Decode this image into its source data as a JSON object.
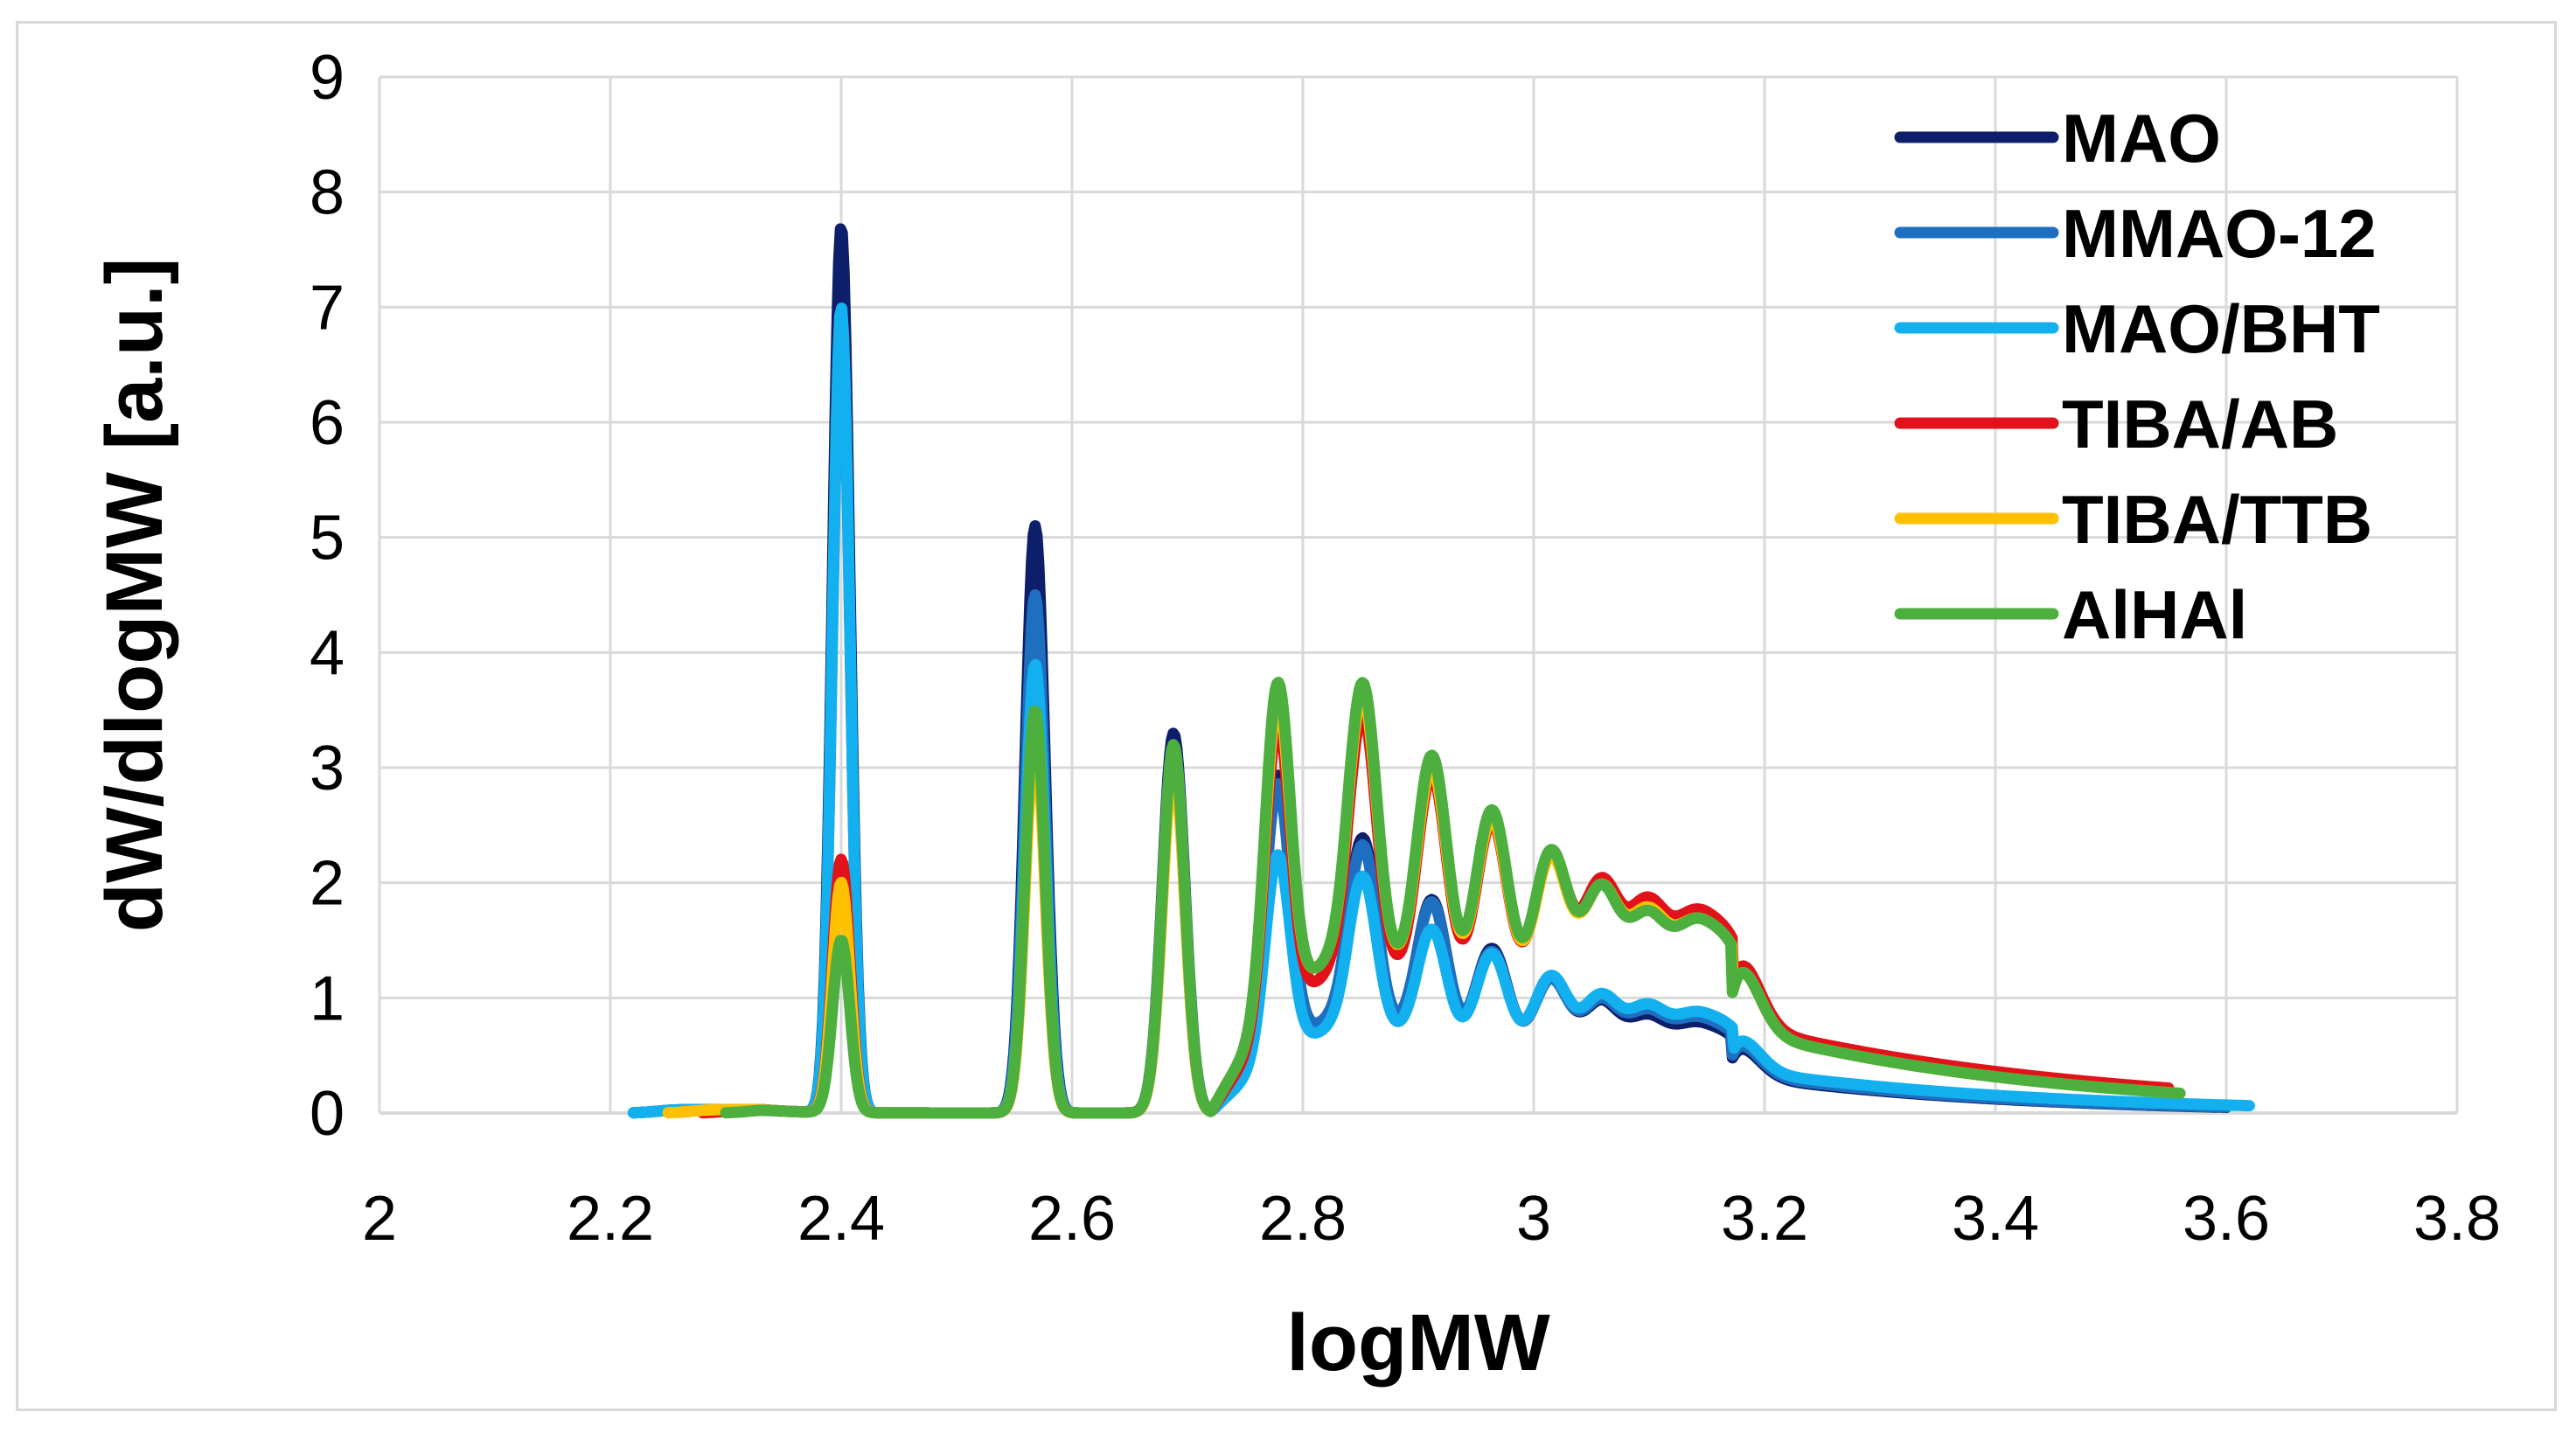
{
  "chart_data": {
    "type": "line",
    "xlabel": "logMW",
    "ylabel": "dW/dlogMW [a.u.]",
    "xlim": [
      2,
      3.8
    ],
    "ylim": [
      0,
      9
    ],
    "x_ticks": [
      "2",
      "2.2",
      "2.4",
      "2.6",
      "2.8",
      "3",
      "3.2",
      "3.4",
      "3.6",
      "3.8"
    ],
    "y_ticks": [
      "0",
      "1",
      "2",
      "3",
      "4",
      "5",
      "6",
      "7",
      "8",
      "9"
    ],
    "grid": true,
    "legend_position": "top-right",
    "peak_positions": [
      2.4,
      2.568,
      2.688,
      2.778,
      2.852,
      2.912,
      2.964,
      3.015,
      3.058,
      3.098,
      3.137,
      3.172
    ],
    "series": [
      {
        "name": "MAO",
        "color": "#0d1f6b",
        "x_range": [
          2.22,
          3.6
        ],
        "baseline_decay": 4.5,
        "peaks": [
          7.7,
          5.1,
          3.3,
          2.4,
          1.6,
          1.25,
          0.95,
          0.78,
          0.62,
          0.52,
          0.45,
          0.4
        ]
      },
      {
        "name": "MMAO-12",
        "color": "#1f6fc0",
        "x_range": [
          2.22,
          3.6
        ],
        "baseline_decay": 4.5,
        "peaks": [
          6.9,
          4.5,
          3.2,
          2.3,
          1.5,
          1.2,
          0.9,
          0.75,
          0.62,
          0.55,
          0.48,
          0.42
        ]
      },
      {
        "name": "MAO/BHT",
        "color": "#13b0f0",
        "x_range": [
          2.22,
          3.62
        ],
        "baseline_decay": 4.0,
        "peaks": [
          7.0,
          3.9,
          3.1,
          1.75,
          1.3,
          1.0,
          0.9,
          0.78,
          0.65,
          0.58,
          0.5,
          0.45
        ]
      },
      {
        "name": "TIBA/AB",
        "color": "#e2121b",
        "x_range": [
          2.28,
          3.55
        ],
        "baseline_decay": 3.4,
        "peaks": [
          2.2,
          3.3,
          3.05,
          2.6,
          2.2,
          1.9,
          1.65,
          1.5,
          1.3,
          1.15,
          1.0,
          0.92
        ]
      },
      {
        "name": "TIBA/TTB",
        "color": "#ffc000",
        "x_range": [
          2.25,
          3.55
        ],
        "baseline_decay": 3.8,
        "peaks": [
          2.0,
          3.2,
          3.0,
          2.7,
          2.25,
          1.9,
          1.65,
          1.45,
          1.25,
          1.08,
          0.95,
          0.88
        ]
      },
      {
        "name": "AlHAl",
        "color": "#4caf3e",
        "x_range": [
          2.3,
          3.56
        ],
        "baseline_decay": 3.8,
        "peaks": [
          1.5,
          3.5,
          3.2,
          2.85,
          2.35,
          2.0,
          1.72,
          1.5,
          1.25,
          1.05,
          0.95,
          0.88
        ]
      }
    ]
  }
}
